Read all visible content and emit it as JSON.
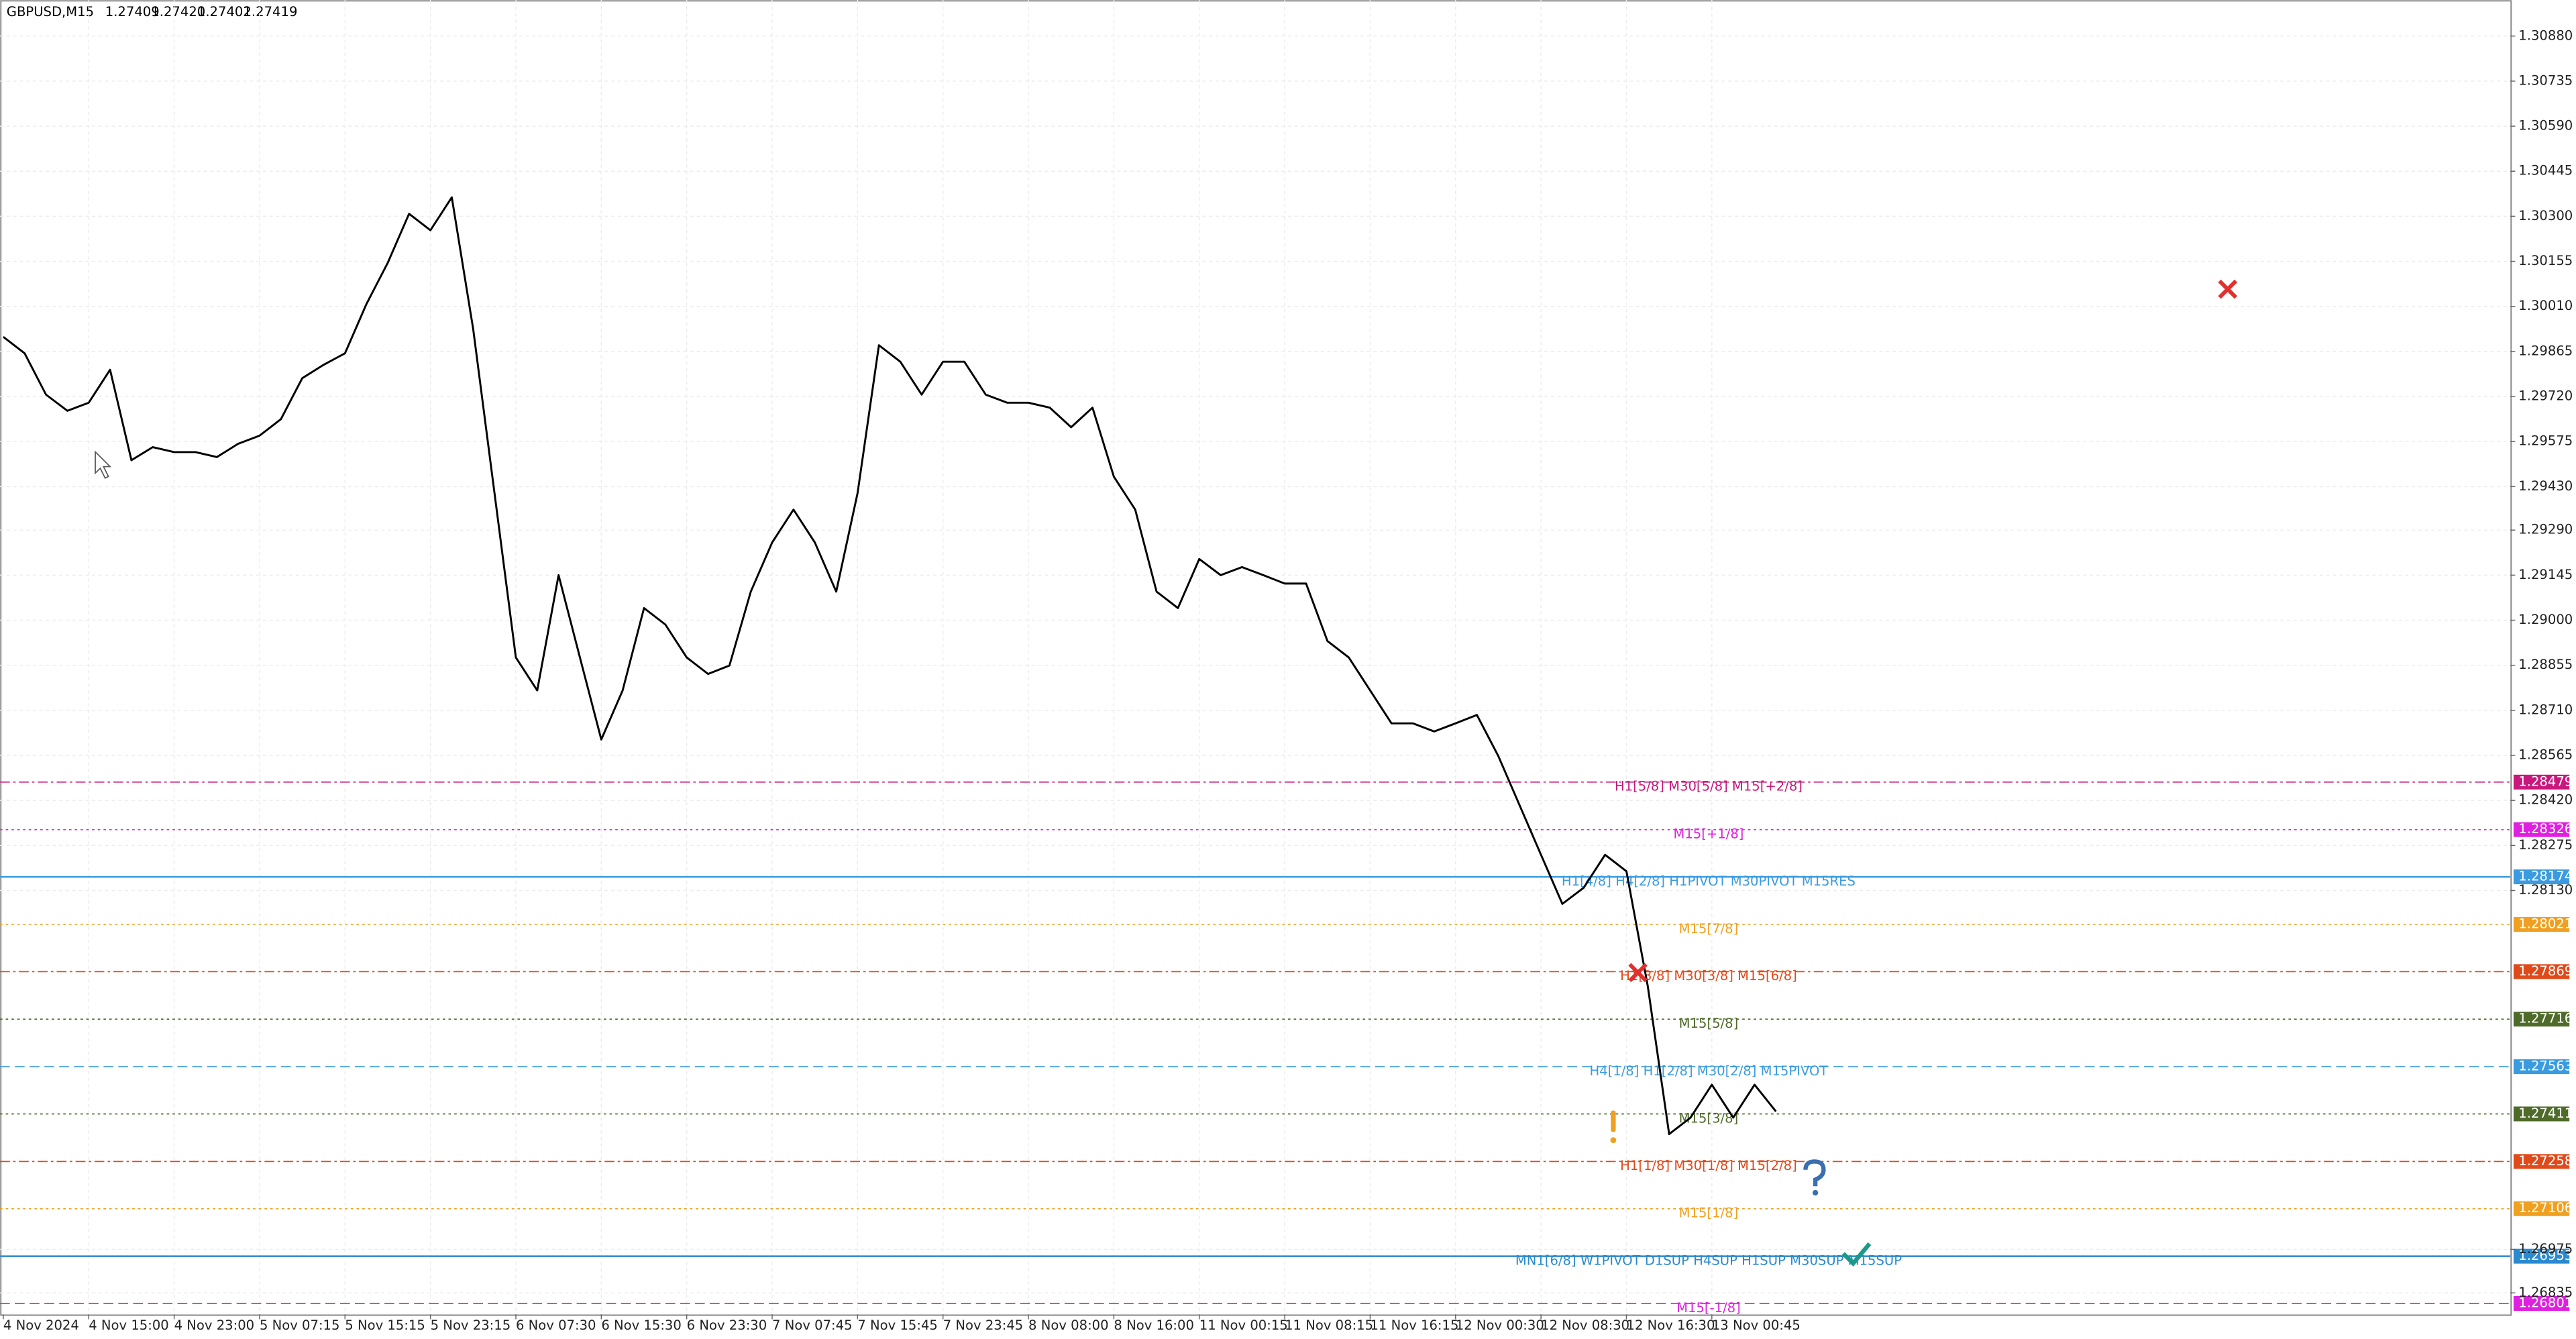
{
  "chart_data": {
    "type": "line",
    "title": "GBPUSD,M15",
    "ohlc": [
      "1.27409",
      "1.27420",
      "1.27402",
      "1.27419"
    ],
    "categories": [
      "4 Nov 2024",
      null,
      null,
      null,
      "4 Nov 15:00",
      null,
      null,
      null,
      "4 Nov 23:00",
      null,
      null,
      null,
      "5 Nov 07:15",
      null,
      null,
      null,
      "5 Nov 15:15",
      null,
      null,
      null,
      "5 Nov 23:15",
      null,
      null,
      null,
      "6 Nov 07:30",
      null,
      null,
      null,
      "6 Nov 15:30",
      null,
      null,
      null,
      "6 Nov 23:30",
      null,
      null,
      null,
      "7 Nov 07:45",
      null,
      null,
      null,
      "7 Nov 15:45",
      null,
      null,
      null,
      "7 Nov 23:45",
      null,
      null,
      null,
      "8 Nov 08:00",
      null,
      null,
      null,
      "8 Nov 16:00",
      null,
      null,
      null,
      "11 Nov 00:15",
      null,
      null,
      null,
      "11 Nov 08:15",
      null,
      null,
      null,
      "11 Nov 16:15",
      null,
      null,
      null,
      "12 Nov 00:30",
      null,
      null,
      null,
      "12 Nov 08:30",
      null,
      null,
      null,
      "12 Nov 16:30",
      null,
      null,
      null,
      "13 Nov 00:45",
      null,
      null,
      null
    ],
    "series": [
      {
        "name": "GBPUSD,M15",
        "color": "#000000",
        "values": [
          1.29912,
          1.29859,
          1.29726,
          1.29674,
          1.297,
          1.29806,
          1.29515,
          1.29557,
          1.29541,
          1.29541,
          1.29525,
          1.29568,
          1.29594,
          1.29647,
          1.29779,
          1.29822,
          1.29859,
          1.30017,
          1.3015,
          1.30308,
          1.30255,
          1.30361,
          1.29938,
          1.29409,
          1.2888,
          1.28774,
          1.29145,
          1.2888,
          1.28616,
          1.28774,
          1.29039,
          1.28986,
          1.2888,
          1.28827,
          1.28854,
          1.29092,
          1.2925,
          1.29356,
          1.2925,
          1.29092,
          1.29409,
          1.29885,
          1.29832,
          1.29726,
          1.29832,
          1.29832,
          1.29726,
          1.297,
          1.297,
          1.29684,
          1.29621,
          1.29684,
          1.29462,
          1.29356,
          1.29092,
          1.29039,
          1.29197,
          1.29145,
          1.29171,
          1.29145,
          1.29118,
          1.29118,
          1.28933,
          1.2888,
          1.28774,
          1.28668,
          1.28668,
          1.28642,
          1.28668,
          1.28695,
          1.28563,
          1.28404,
          1.28245,
          1.28087,
          1.28139,
          1.28245,
          1.28192,
          1.27822,
          1.27346,
          1.27399,
          1.27505,
          1.27399,
          1.27505,
          1.27419
        ]
      }
    ],
    "ylim": [
      1.26766,
      1.30996
    ],
    "yticks": [
      {
        "value": 1.3088,
        "label": "1.30880"
      },
      1.30735,
      {
        "value": 1.3059,
        "label": "1.30590"
      },
      1.30445,
      {
        "value": 1.303,
        "label": "1.30300"
      },
      1.30155,
      {
        "value": 1.3001,
        "label": "1.30010"
      },
      1.29865,
      {
        "value": 1.2972,
        "label": "1.29720"
      },
      1.29575,
      {
        "value": 1.2943,
        "label": "1.29430"
      },
      {
        "value": 1.2929,
        "label": "1.29290"
      },
      1.29145,
      {
        "value": 1.29,
        "label": "1.29000"
      },
      1.28855,
      {
        "value": 1.2871,
        "label": "1.28710"
      },
      1.28565,
      {
        "value": 1.2842,
        "label": "1.28420"
      },
      1.28275,
      {
        "value": 1.2813,
        "label": "1.28130"
      },
      1.26975,
      1.26835
    ],
    "grid": true,
    "levels": [
      {
        "value": 1.28479,
        "label": "H1[5/8] M30[5/8] M15[+2/8]",
        "color": "#c8187c",
        "style": "dashdot"
      },
      {
        "value": 1.28326,
        "label": "M15[+1/8]",
        "color": "#e020e0",
        "style": "dotted"
      },
      {
        "value": 1.28174,
        "label": "H1[4/8] H4[2/8] H1PIVOT M30PIVOT M15RES",
        "color": "#3b9be0",
        "style": "solid"
      },
      {
        "value": 1.28021,
        "label": "M15[7/8]",
        "color": "#f0a020",
        "style": "dotted"
      },
      {
        "value": 1.27869,
        "label": "H1[3/8] M30[3/8] M15[6/8]",
        "color": "#e04a1a",
        "style": "dashdot"
      },
      {
        "value": 1.27716,
        "label": "M15[5/8]",
        "color": "#4f6b2a",
        "style": "dotted"
      },
      {
        "value": 1.27563,
        "label": "H4[1/8] H1[2/8] M30[2/8] M15PIVOT",
        "color": "#3b9be0",
        "style": "dashed"
      },
      {
        "value": 1.27411,
        "label": "M15[3/8]",
        "color": "#4f6b2a",
        "style": "dotted"
      },
      {
        "value": 1.27258,
        "label": "H1[1/8] M30[1/8] M15[2/8]",
        "color": "#e04a1a",
        "style": "dashdot"
      },
      {
        "value": 1.27106,
        "label": "M15[1/8]",
        "color": "#f0a020",
        "style": "dotted"
      },
      {
        "value": 1.26953,
        "label": "MN1[6/8] W1PIVOT D1SUP H4SUP H1SUP M30SUP M15SUP",
        "color": "#2a8ad0",
        "style": "solid"
      },
      {
        "value": 1.26801,
        "label": "M15[-1/8]",
        "color": "#e020e0",
        "style": "dashed"
      }
    ]
  }
}
